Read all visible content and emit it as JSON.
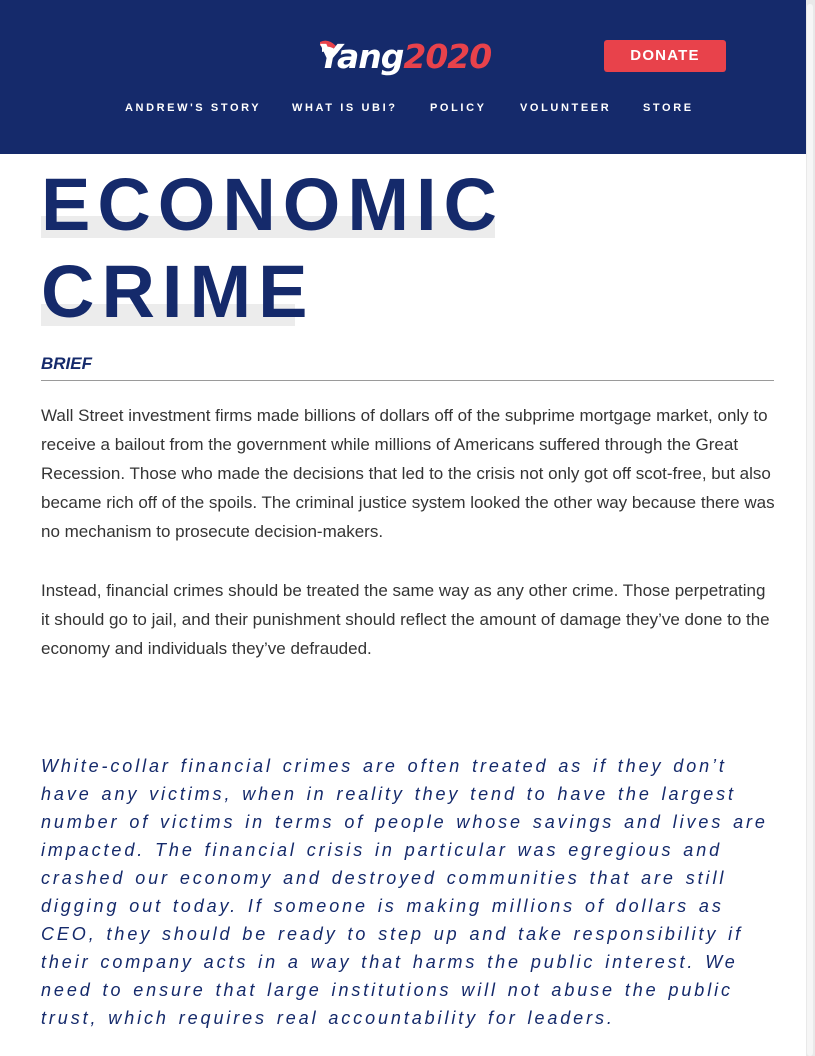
{
  "header": {
    "logo": {
      "word": "Yang",
      "year": "2020"
    },
    "donate_label": "DONATE",
    "nav": [
      {
        "label": "ANDREW'S STORY"
      },
      {
        "label": "WHAT IS UBI?"
      },
      {
        "label": "POLICY"
      },
      {
        "label": "VOLUNTEER"
      },
      {
        "label": "STORE"
      }
    ]
  },
  "main": {
    "title_lines": [
      "ECONOMIC",
      "CRIME"
    ],
    "section_label": "BRIEF",
    "paragraphs": [
      "Wall Street investment firms made billions of dollars off of the subprime mortgage market, only to receive a bailout from the government while millions of Americans suffered through the Great Recession. Those who made the decisions that led to the crisis not only got off scot-free, but also became rich off of the spoils. The criminal justice system looked the other way because there was no mechanism to prosecute decision-makers.",
      "Instead, financial crimes should be treated the same way as any other crime. Those perpetrating it should go to jail, and their punishment should reflect the amount of damage they’ve done to the economy and individuals they’ve defrauded."
    ],
    "quote": "White-collar financial crimes are often treated as if they don’t have any victims, when in reality they tend to have the largest number of victims in terms of people whose savings and lives are impacted. The financial crisis in particular was egregious and crashed our economy and destroyed communities that are still digging out today. If someone is making millions of dollars as CEO, they should be ready to step up and take responsibility if their company acts in a way that harms the public interest. We need to ensure that large institutions will not abuse the public trust, which requires real accountability for leaders."
  },
  "colors": {
    "navy": "#152a6b",
    "red": "#e8424b",
    "body_text": "#343434"
  }
}
